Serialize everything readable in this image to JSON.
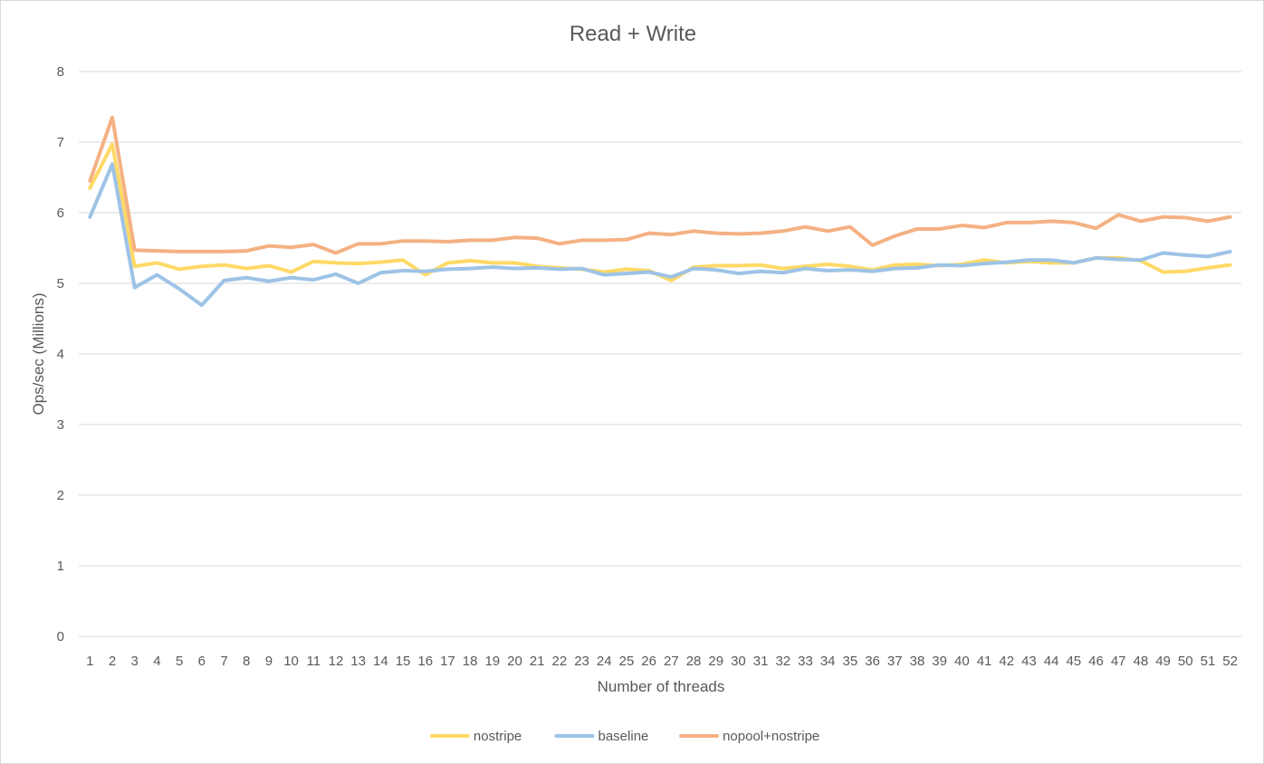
{
  "chart_data": {
    "type": "line",
    "title": "Read + Write",
    "xlabel": "Number of threads",
    "ylabel": "Ops/sec (Millions)",
    "ylim": [
      0,
      8
    ],
    "yticks": [
      "0",
      "1",
      "2",
      "3",
      "4",
      "5",
      "6",
      "7",
      "8"
    ],
    "grid": true,
    "legend_position": "bottom",
    "categories": [
      1,
      2,
      3,
      4,
      5,
      6,
      7,
      8,
      9,
      10,
      11,
      12,
      13,
      14,
      15,
      16,
      17,
      18,
      19,
      20,
      21,
      22,
      23,
      24,
      25,
      26,
      27,
      28,
      29,
      30,
      31,
      32,
      33,
      34,
      35,
      36,
      37,
      38,
      39,
      40,
      41,
      42,
      43,
      44,
      45,
      46,
      47,
      48,
      49,
      50,
      51,
      52
    ],
    "series": [
      {
        "name": "nostripe",
        "color": "#FFD966",
        "values": [
          6.35,
          6.97,
          5.24,
          5.29,
          5.2,
          5.24,
          5.26,
          5.21,
          5.25,
          5.16,
          5.31,
          5.29,
          5.28,
          5.3,
          5.33,
          5.12,
          5.29,
          5.32,
          5.29,
          5.29,
          5.24,
          5.22,
          5.2,
          5.16,
          5.2,
          5.18,
          5.04,
          5.23,
          5.25,
          5.25,
          5.26,
          5.21,
          5.24,
          5.27,
          5.24,
          5.19,
          5.26,
          5.27,
          5.25,
          5.27,
          5.33,
          5.29,
          5.31,
          5.29,
          5.29,
          5.36,
          5.36,
          5.32,
          5.16,
          5.17,
          5.22,
          5.26
        ]
      },
      {
        "name": "baseline",
        "color": "#9DC3E6",
        "values": [
          5.94,
          6.69,
          4.94,
          5.12,
          4.92,
          4.69,
          5.04,
          5.08,
          5.03,
          5.08,
          5.05,
          5.13,
          5.0,
          5.15,
          5.18,
          5.17,
          5.2,
          5.21,
          5.23,
          5.21,
          5.22,
          5.2,
          5.21,
          5.12,
          5.14,
          5.16,
          5.09,
          5.21,
          5.19,
          5.14,
          5.17,
          5.15,
          5.21,
          5.18,
          5.19,
          5.17,
          5.21,
          5.22,
          5.26,
          5.25,
          5.28,
          5.3,
          5.33,
          5.33,
          5.29,
          5.36,
          5.34,
          5.33,
          5.43,
          5.4,
          5.38,
          5.45
        ]
      },
      {
        "name": "nopool+nostripe",
        "color": "#F4B183",
        "values": [
          6.45,
          7.35,
          5.47,
          5.46,
          5.45,
          5.45,
          5.45,
          5.46,
          5.53,
          5.51,
          5.55,
          5.43,
          5.56,
          5.56,
          5.6,
          5.6,
          5.59,
          5.61,
          5.61,
          5.65,
          5.64,
          5.56,
          5.61,
          5.61,
          5.62,
          5.71,
          5.69,
          5.74,
          5.71,
          5.7,
          5.71,
          5.74,
          5.8,
          5.74,
          5.8,
          5.54,
          5.67,
          5.77,
          5.77,
          5.82,
          5.79,
          5.86,
          5.86,
          5.88,
          5.86,
          5.78,
          5.97,
          5.88,
          5.94,
          5.93,
          5.88,
          5.94
        ]
      }
    ]
  }
}
